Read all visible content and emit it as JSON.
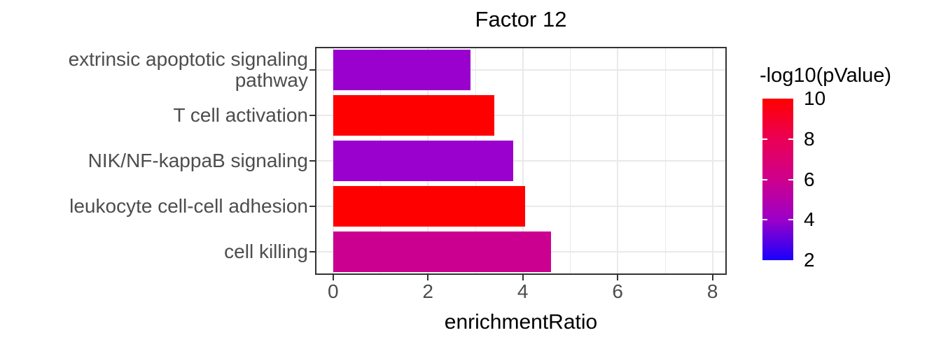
{
  "title": "Factor 12",
  "legend": {
    "title": "-log10(pValue)",
    "tick_labels": [
      "10",
      "8",
      "6",
      "4",
      "2"
    ],
    "min": 2,
    "max": 10,
    "gradient_stops": [
      {
        "value": 10,
        "color": "#FF0000"
      },
      {
        "value": 8,
        "color": "#EB0054"
      },
      {
        "value": 6,
        "color": "#CE008C"
      },
      {
        "value": 4,
        "color": "#9B00C8"
      },
      {
        "value": 2,
        "color": "#1A00FB"
      }
    ]
  },
  "chart_data": {
    "type": "bar",
    "orientation": "horizontal",
    "title": "Factor 12",
    "xlabel": "enrichmentRatio",
    "ylabel": "",
    "categories": [
      "extrinsic apoptotic signaling pathway",
      "T cell activation",
      "NIK/NF-kappaB signaling",
      "leukocyte cell-cell adhesion",
      "cell killing"
    ],
    "categories_display": [
      "extrinsic apoptotic signaling\npathway",
      "T cell activation",
      "NIK/NF-kappaB signaling",
      "leukocyte cell-cell adhesion",
      "cell killing"
    ],
    "series": [
      {
        "name": "enrichmentRatio",
        "values": [
          2.9,
          3.4,
          3.8,
          4.05,
          4.6
        ]
      }
    ],
    "color_metric": "-log10(pValue)",
    "color_values_approx": [
      4,
      10,
      4,
      10,
      6.2
    ],
    "bar_colors": [
      "#9A00CE",
      "#FF0000",
      "#9A00CE",
      "#FF0000",
      "#CB0090"
    ],
    "xlim": [
      -0.38,
      8.3
    ],
    "x_ticks": [
      0,
      2,
      4,
      6,
      8
    ],
    "x_minor_ticks": [
      1,
      3,
      5,
      7
    ],
    "grid": true,
    "legend_position": "right"
  }
}
